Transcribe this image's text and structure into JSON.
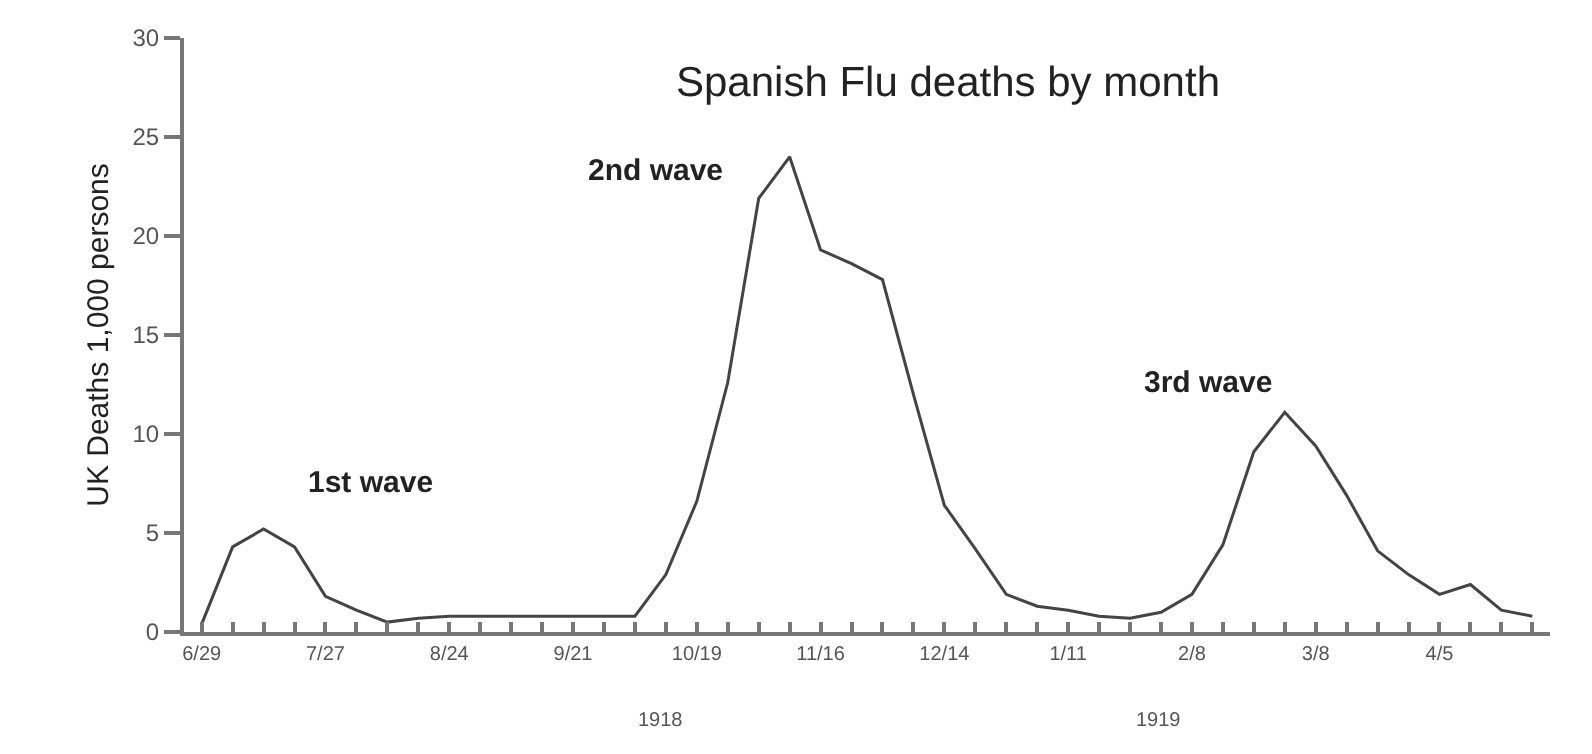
{
  "chart_data": {
    "type": "line",
    "title": "Spanish Flu deaths by month",
    "ylabel": "UK Deaths 1,000 persons",
    "x": [
      "1918-06-29",
      "1918-07-06",
      "1918-07-13",
      "1918-07-20",
      "1918-07-27",
      "1918-08-03",
      "1918-08-10",
      "1918-08-17",
      "1918-08-24",
      "1918-08-31",
      "1918-09-07",
      "1918-09-14",
      "1918-09-21",
      "1918-09-28",
      "1918-10-05",
      "1918-10-12",
      "1918-10-19",
      "1918-10-26",
      "1918-11-02",
      "1918-11-09",
      "1918-11-16",
      "1918-11-23",
      "1918-11-30",
      "1918-12-07",
      "1918-12-14",
      "1918-12-21",
      "1918-12-28",
      "1919-01-04",
      "1919-01-11",
      "1919-01-18",
      "1919-01-25",
      "1919-02-01",
      "1919-02-08",
      "1919-02-15",
      "1919-02-22",
      "1919-03-01",
      "1919-03-08",
      "1919-03-15",
      "1919-03-22",
      "1919-03-29",
      "1919-04-05",
      "1919-04-12",
      "1919-04-19",
      "1919-04-26"
    ],
    "series": [
      {
        "color": "#444444",
        "values": [
          0.4,
          4.3,
          5.2,
          4.3,
          1.8,
          1.1,
          0.5,
          0.7,
          0.8,
          0.8,
          0.8,
          0.8,
          0.8,
          0.8,
          0.8,
          2.9,
          6.6,
          12.6,
          21.9,
          24.0,
          19.3,
          18.6,
          17.8,
          12,
          6.4,
          4.2,
          1.9,
          1.3,
          1.1,
          0.8,
          0.7,
          1.0,
          1.9,
          4.4,
          9.1,
          11.1,
          9.4,
          6.9,
          4.1,
          2.9,
          1.9,
          2.4,
          1.1,
          0.8
        ]
      }
    ],
    "xlim": [
      "1918-06-25",
      "1919-04-30"
    ],
    "xticks": [
      {
        "value": "1918-06-29",
        "label": "6/29"
      },
      {
        "value": "1918-07-06",
        "label": null
      },
      {
        "value": "1918-07-13",
        "label": null
      },
      {
        "value": "1918-07-20",
        "label": null
      },
      {
        "value": "1918-07-27",
        "label": "7/27"
      },
      {
        "value": "1918-08-03",
        "label": null
      },
      {
        "value": "1918-08-10",
        "label": null
      },
      {
        "value": "1918-08-17",
        "label": null
      },
      {
        "value": "1918-08-24",
        "label": "8/24"
      },
      {
        "value": "1918-08-31",
        "label": null
      },
      {
        "value": "1918-09-07",
        "label": null
      },
      {
        "value": "1918-09-14",
        "label": null
      },
      {
        "value": "1918-09-21",
        "label": "9/21"
      },
      {
        "value": "1918-09-28",
        "label": null
      },
      {
        "value": "1918-10-05",
        "label": null
      },
      {
        "value": "1918-10-12",
        "label": null
      },
      {
        "value": "1918-10-19",
        "label": "10/19"
      },
      {
        "value": "1918-10-26",
        "label": null
      },
      {
        "value": "1918-11-02",
        "label": null
      },
      {
        "value": "1918-11-09",
        "label": null
      },
      {
        "value": "1918-11-16",
        "label": "11/16"
      },
      {
        "value": "1918-11-23",
        "label": null
      },
      {
        "value": "1918-11-30",
        "label": null
      },
      {
        "value": "1918-12-07",
        "label": null
      },
      {
        "value": "1918-12-14",
        "label": "12/14"
      },
      {
        "value": "1918-12-21",
        "label": null
      },
      {
        "value": "1918-12-28",
        "label": null
      },
      {
        "value": "1919-01-04",
        "label": null
      },
      {
        "value": "1919-01-11",
        "label": "1/11"
      },
      {
        "value": "1919-01-18",
        "label": null
      },
      {
        "value": "1919-01-25",
        "label": null
      },
      {
        "value": "1919-02-01",
        "label": null
      },
      {
        "value": "1919-02-08",
        "label": "2/8"
      },
      {
        "value": "1919-02-15",
        "label": null
      },
      {
        "value": "1919-02-22",
        "label": null
      },
      {
        "value": "1919-03-01",
        "label": null
      },
      {
        "value": "1919-03-08",
        "label": "3/8"
      },
      {
        "value": "1919-03-15",
        "label": null
      },
      {
        "value": "1919-03-22",
        "label": null
      },
      {
        "value": "1919-03-29",
        "label": null
      },
      {
        "value": "1919-04-05",
        "label": "4/5"
      },
      {
        "value": "1919-04-12",
        "label": null
      },
      {
        "value": "1919-04-19",
        "label": null
      },
      {
        "value": "1919-04-26",
        "label": null
      }
    ],
    "ylim": [
      0,
      30
    ],
    "yticks": [
      0,
      5,
      10,
      15,
      20,
      25,
      30
    ],
    "marker": "none",
    "line_style": "solid",
    "annotations": [
      "1st wave",
      "2nd wave",
      "3rd wave",
      "1918",
      "1919"
    ]
  }
}
